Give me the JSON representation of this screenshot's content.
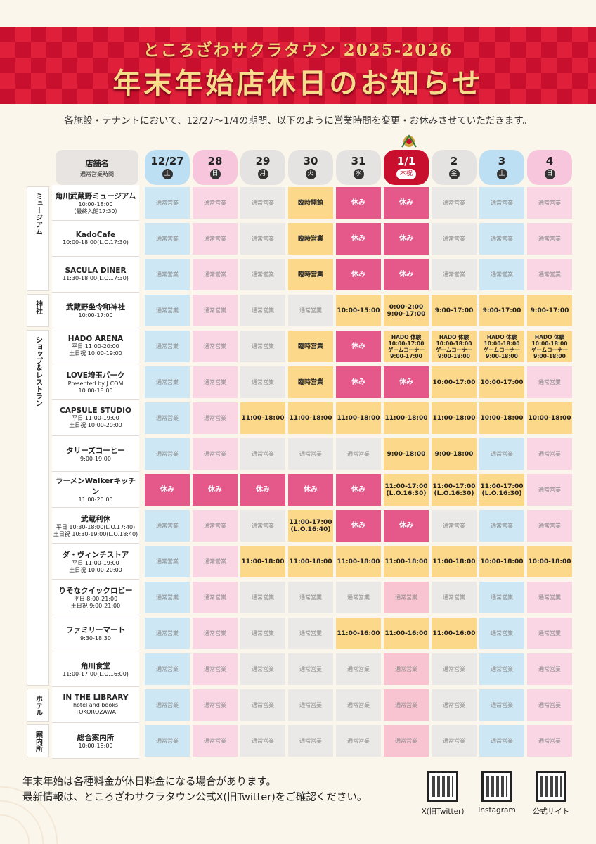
{
  "header": {
    "subtitle": "ところざわサクラタウン 2025-2026",
    "title": "年末年始店休日のお知らせ"
  },
  "notice": "各施設・テナントにおいて、12/27～1/4の期間、以下のように営業時間を変更・お休みさせていただきます。",
  "table_header": {
    "store_label": "店舗名",
    "store_sub": "通常営業時間",
    "days": [
      {
        "date": "12/27",
        "weekday": "土",
        "color": "blue"
      },
      {
        "date": "28",
        "weekday": "日",
        "color": "pink"
      },
      {
        "date": "29",
        "weekday": "月",
        "color": "gray"
      },
      {
        "date": "30",
        "weekday": "火",
        "color": "gray"
      },
      {
        "date": "31",
        "weekday": "水",
        "color": "gray"
      },
      {
        "date": "1/1",
        "weekday": "木祝",
        "color": "red"
      },
      {
        "date": "2",
        "weekday": "金",
        "color": "gray"
      },
      {
        "date": "3",
        "weekday": "土",
        "color": "blue"
      },
      {
        "date": "4",
        "weekday": "日",
        "color": "pink"
      }
    ]
  },
  "categories": [
    {
      "label": "ミュージアム",
      "rows": 3
    },
    {
      "label": "神社",
      "rows": 1
    },
    {
      "label": "ショップ＆レストラン",
      "rows": 10
    },
    {
      "label": "ホテル",
      "rows": 1
    },
    {
      "label": "案内所",
      "rows": 1
    }
  ],
  "rows": [
    {
      "name": "角川武蔵野ミュージアム",
      "hours": [
        "10:00-18:00",
        "（最終入館17:30）"
      ],
      "cells": [
        [
          "通常営業",
          "blue"
        ],
        [
          "通常営業",
          "pink"
        ],
        [
          "通常営業",
          "gray"
        ],
        [
          "臨時開館",
          "yellow"
        ],
        [
          "休み",
          "red"
        ],
        [
          "休み",
          "red"
        ],
        [
          "通常営業",
          "gray"
        ],
        [
          "通常営業",
          "blue"
        ],
        [
          "通常営業",
          "pink"
        ]
      ]
    },
    {
      "name": "KadoCafe",
      "hours": [
        "10:00-18:00(L.O.17:30)"
      ],
      "cells": [
        [
          "通常営業",
          "blue"
        ],
        [
          "通常営業",
          "pink"
        ],
        [
          "通常営業",
          "gray"
        ],
        [
          "臨時営業",
          "yellow"
        ],
        [
          "休み",
          "red"
        ],
        [
          "休み",
          "red"
        ],
        [
          "通常営業",
          "gray"
        ],
        [
          "通常営業",
          "blue"
        ],
        [
          "通常営業",
          "pink"
        ]
      ]
    },
    {
      "name": "SACULA DINER",
      "hours": [
        "11:30-18:00(L.O.17:30)"
      ],
      "cells": [
        [
          "通常営業",
          "blue"
        ],
        [
          "通常営業",
          "pink"
        ],
        [
          "通常営業",
          "gray"
        ],
        [
          "臨時営業",
          "yellow"
        ],
        [
          "休み",
          "red"
        ],
        [
          "休み",
          "red"
        ],
        [
          "通常営業",
          "gray"
        ],
        [
          "通常営業",
          "blue"
        ],
        [
          "通常営業",
          "pink"
        ]
      ]
    },
    {
      "name": "武蔵野坐令和神社",
      "hours": [
        "10:00-17:00"
      ],
      "cells": [
        [
          "通常営業",
          "blue"
        ],
        [
          "通常営業",
          "pink"
        ],
        [
          "通常営業",
          "gray"
        ],
        [
          "通常営業",
          "gray"
        ],
        [
          "10:00-15:00",
          "yellow"
        ],
        [
          "0:00-2:00\n9:00-17:00",
          "yellow"
        ],
        [
          "9:00-17:00",
          "yellow"
        ],
        [
          "9:00-17:00",
          "yellow"
        ],
        [
          "9:00-17:00",
          "yellow"
        ]
      ]
    },
    {
      "name": "HADO ARENA",
      "hours": [
        "平日 11:00-20:00",
        "土日祝 10:00-19:00"
      ],
      "cells": [
        [
          "通常営業",
          "blue"
        ],
        [
          "通常営業",
          "pink"
        ],
        [
          "通常営業",
          "gray"
        ],
        [
          "臨時営業",
          "yellow"
        ],
        [
          "休み",
          "red"
        ],
        [
          "HADO 体験\n10:00-17:00\nゲームコーナー\n9:00-17:00",
          "yellow"
        ],
        [
          "HADO 体験\n10:00-18:00\nゲームコーナー\n9:00-18:00",
          "yellow"
        ],
        [
          "HADO 体験\n10:00-18:00\nゲームコーナー\n9:00-18:00",
          "yellow"
        ],
        [
          "HADO 体験\n10:00-18:00\nゲームコーナー\n9:00-18:00",
          "yellow"
        ]
      ]
    },
    {
      "name": "LOVE埼玉パーク",
      "hours": [
        "Presented by J:COM",
        "10:00-18:00"
      ],
      "cells": [
        [
          "通常営業",
          "blue"
        ],
        [
          "通常営業",
          "pink"
        ],
        [
          "通常営業",
          "gray"
        ],
        [
          "臨時営業",
          "yellow"
        ],
        [
          "休み",
          "red"
        ],
        [
          "休み",
          "red"
        ],
        [
          "10:00-17:00",
          "yellow"
        ],
        [
          "10:00-17:00",
          "yellow"
        ],
        [
          "通常営業",
          "pink"
        ]
      ]
    },
    {
      "name": "CAPSULE STUDIO",
      "hours": [
        "平日 11:00-19:00",
        "土日祝 10:00-20:00"
      ],
      "cells": [
        [
          "通常営業",
          "blue"
        ],
        [
          "通常営業",
          "pink"
        ],
        [
          "11:00-18:00",
          "yellow"
        ],
        [
          "11:00-18:00",
          "yellow"
        ],
        [
          "11:00-18:00",
          "yellow"
        ],
        [
          "11:00-18:00",
          "yellow"
        ],
        [
          "11:00-18:00",
          "yellow"
        ],
        [
          "10:00-18:00",
          "yellow"
        ],
        [
          "10:00-18:00",
          "yellow"
        ]
      ]
    },
    {
      "name": "タリーズコーヒー",
      "hours": [
        "9:00-19:00"
      ],
      "cells": [
        [
          "通常営業",
          "blue"
        ],
        [
          "通常営業",
          "pink"
        ],
        [
          "通常営業",
          "gray"
        ],
        [
          "通常営業",
          "gray"
        ],
        [
          "通常営業",
          "gray"
        ],
        [
          "9:00-18:00",
          "yellow"
        ],
        [
          "9:00-18:00",
          "yellow"
        ],
        [
          "通常営業",
          "blue"
        ],
        [
          "通常営業",
          "pink"
        ]
      ]
    },
    {
      "name": "ラーメンWalkerキッチン",
      "hours": [
        "11:00-20:00"
      ],
      "cells": [
        [
          "休み",
          "red"
        ],
        [
          "休み",
          "red"
        ],
        [
          "休み",
          "red"
        ],
        [
          "休み",
          "red"
        ],
        [
          "休み",
          "red"
        ],
        [
          "11:00-17:00\n(L.O.16:30)",
          "yellow"
        ],
        [
          "11:00-17:00\n(L.O.16:30)",
          "yellow"
        ],
        [
          "11:00-17:00\n(L.O.16:30)",
          "yellow"
        ],
        [
          "通常営業",
          "pink"
        ]
      ]
    },
    {
      "name": "武蔵利休",
      "hours": [
        "平日 10:30-18:00(L.O.17:40)",
        "土日祝 10:30-19:00(L.O.18:40)"
      ],
      "cells": [
        [
          "通常営業",
          "blue"
        ],
        [
          "通常営業",
          "pink"
        ],
        [
          "通常営業",
          "gray"
        ],
        [
          "11:00-17:00\n(L.O.16:40)",
          "yellow"
        ],
        [
          "休み",
          "red"
        ],
        [
          "休み",
          "red"
        ],
        [
          "通常営業",
          "gray"
        ],
        [
          "通常営業",
          "blue"
        ],
        [
          "通常営業",
          "pink"
        ]
      ]
    },
    {
      "name": "ダ・ヴィンチストア",
      "hours": [
        "平日 11:00-19:00",
        "土日祝 10:00-20:00"
      ],
      "cells": [
        [
          "通常営業",
          "blue"
        ],
        [
          "通常営業",
          "pink"
        ],
        [
          "11:00-18:00",
          "yellow"
        ],
        [
          "11:00-18:00",
          "yellow"
        ],
        [
          "11:00-18:00",
          "yellow"
        ],
        [
          "11:00-18:00",
          "yellow"
        ],
        [
          "11:00-18:00",
          "yellow"
        ],
        [
          "10:00-18:00",
          "yellow"
        ],
        [
          "10:00-18:00",
          "yellow"
        ]
      ]
    },
    {
      "name": "りそなクイックロビー",
      "hours": [
        "平日 8:00-21:00",
        "土日祝 9:00-21:00"
      ],
      "cells": [
        [
          "通常営業",
          "blue"
        ],
        [
          "通常営業",
          "pink"
        ],
        [
          "通常営業",
          "gray"
        ],
        [
          "通常営業",
          "gray"
        ],
        [
          "通常営業",
          "gray"
        ],
        [
          "通常営業",
          "lpink"
        ],
        [
          "通常営業",
          "gray"
        ],
        [
          "通常営業",
          "blue"
        ],
        [
          "通常営業",
          "pink"
        ]
      ]
    },
    {
      "name": "ファミリーマート",
      "hours": [
        "9:30-18:30"
      ],
      "cells": [
        [
          "通常営業",
          "blue"
        ],
        [
          "通常営業",
          "pink"
        ],
        [
          "通常営業",
          "gray"
        ],
        [
          "通常営業",
          "gray"
        ],
        [
          "11:00-16:00",
          "yellow"
        ],
        [
          "11:00-16:00",
          "yellow"
        ],
        [
          "11:00-16:00",
          "yellow"
        ],
        [
          "通常営業",
          "blue"
        ],
        [
          "通常営業",
          "pink"
        ]
      ]
    },
    {
      "name": "角川食堂",
      "hours": [
        "11:00-17:00(L.O.16:00)"
      ],
      "cells": [
        [
          "通常営業",
          "blue"
        ],
        [
          "通常営業",
          "pink"
        ],
        [
          "通常営業",
          "gray"
        ],
        [
          "通常営業",
          "gray"
        ],
        [
          "通常営業",
          "gray"
        ],
        [
          "通常営業",
          "lpink"
        ],
        [
          "通常営業",
          "gray"
        ],
        [
          "通常営業",
          "blue"
        ],
        [
          "通常営業",
          "pink"
        ]
      ]
    },
    {
      "name": "IN THE LIBRARY",
      "hours": [
        "hotel and books TOKOROZAWA"
      ],
      "cells": [
        [
          "通常営業",
          "blue"
        ],
        [
          "通常営業",
          "pink"
        ],
        [
          "通常営業",
          "gray"
        ],
        [
          "通常営業",
          "gray"
        ],
        [
          "通常営業",
          "gray"
        ],
        [
          "通常営業",
          "lpink"
        ],
        [
          "通常営業",
          "gray"
        ],
        [
          "通常営業",
          "blue"
        ],
        [
          "通常営業",
          "pink"
        ]
      ]
    },
    {
      "name": "総合案内所",
      "hours": [
        "10:00-18:00"
      ],
      "cells": [
        [
          "通常営業",
          "blue"
        ],
        [
          "通常営業",
          "pink"
        ],
        [
          "通常営業",
          "gray"
        ],
        [
          "通常営業",
          "gray"
        ],
        [
          "通常営業",
          "gray"
        ],
        [
          "通常営業",
          "lpink"
        ],
        [
          "通常営業",
          "gray"
        ],
        [
          "通常営業",
          "blue"
        ],
        [
          "通常営業",
          "pink"
        ]
      ]
    }
  ],
  "footer": {
    "line1": "年末年始は各種料金が休日料金になる場合があります。",
    "line2": "最新情報は、ところざわサクラタウン公式X(旧Twitter)をご確認ください。",
    "qr_labels": [
      "X(旧Twitter)",
      "Instagram",
      "公式サイト"
    ]
  }
}
